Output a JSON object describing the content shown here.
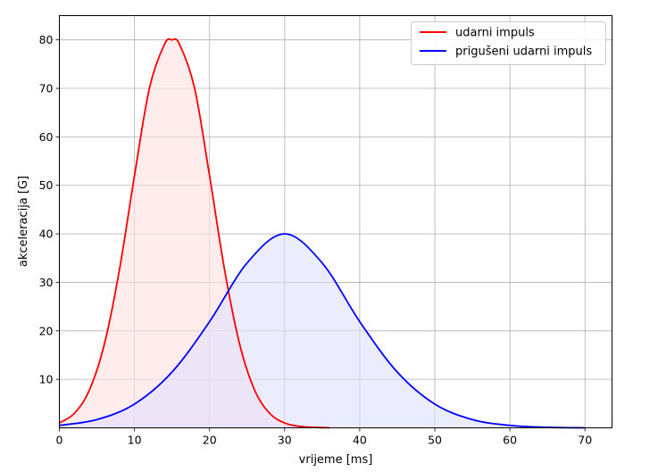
{
  "chart_data": {
    "type": "area",
    "title": "",
    "xlabel": "vrijeme [ms]",
    "ylabel": "akceleracija [G]",
    "xlim": [
      0,
      73.6
    ],
    "ylim": [
      0,
      85
    ],
    "x_ticks": [
      0,
      10,
      20,
      30,
      40,
      50,
      60,
      70
    ],
    "y_ticks": [
      10,
      20,
      30,
      40,
      50,
      60,
      70,
      80
    ],
    "grid": true,
    "legend_position": "top-right",
    "series": [
      {
        "name": "udarni impuls",
        "color": "#ff0000",
        "fill": "#ffe0e0",
        "x": [
          0,
          2,
          4,
          6,
          8,
          10,
          12,
          14,
          15,
          16,
          18,
          20,
          22,
          24,
          26,
          28,
          30,
          32,
          34,
          36
        ],
        "y": [
          1.0,
          3.0,
          7.8,
          17.3,
          32.6,
          52.0,
          70.1,
          79.1,
          80.0,
          79.1,
          70.1,
          52.0,
          32.6,
          17.3,
          7.8,
          3.0,
          1.0,
          0.3,
          0.1,
          0.0
        ]
      },
      {
        "name": "prigušeni udarni impuls",
        "color": "#0000ff",
        "fill": "#e0e0ff",
        "x": [
          0,
          5,
          10,
          15,
          20,
          25,
          30,
          35,
          40,
          45,
          50,
          55,
          60,
          65,
          70
        ],
        "y": [
          0.5,
          1.7,
          4.9,
          11.5,
          21.9,
          34.0,
          40.0,
          34.0,
          21.9,
          11.5,
          4.9,
          1.7,
          0.5,
          0.1,
          0.0
        ]
      }
    ]
  }
}
